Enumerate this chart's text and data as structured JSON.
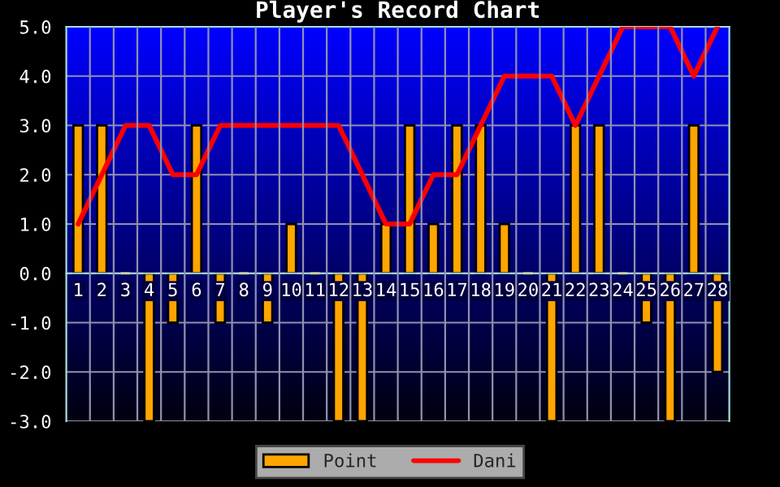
{
  "chart_data": {
    "type": "bar",
    "title": "Player's Record Chart",
    "categories": [
      "1",
      "2",
      "3",
      "4",
      "5",
      "6",
      "7",
      "8",
      "9",
      "10",
      "11",
      "12",
      "13",
      "14",
      "15",
      "16",
      "17",
      "18",
      "19",
      "20",
      "21",
      "22",
      "23",
      "24",
      "25",
      "26",
      "27",
      "28"
    ],
    "series": [
      {
        "name": "Point",
        "type": "bar",
        "color": "#ffa500",
        "values": [
          3,
          3,
          0,
          -3,
          -1,
          3,
          -1,
          0,
          -1,
          1,
          0,
          -3,
          -3,
          1,
          3,
          1,
          3,
          3,
          1,
          0,
          -3,
          3,
          3,
          0,
          -1,
          -3,
          3,
          -2
        ]
      },
      {
        "name": "Dani",
        "type": "line",
        "color": "#ff0000",
        "values": [
          1,
          2,
          3,
          3,
          2,
          2,
          3,
          3,
          3,
          3,
          3,
          3,
          2,
          1,
          1,
          2,
          2,
          3,
          4,
          4,
          4,
          3,
          4,
          5,
          5,
          5,
          4,
          5
        ]
      }
    ],
    "ylim": [
      -3,
      5
    ],
    "yticks": [
      {
        "value": -3,
        "label": "-3.0"
      },
      {
        "value": -2,
        "label": "-2.0"
      },
      {
        "value": -1,
        "label": "-1.0"
      },
      {
        "value": 0,
        "label": "0.0"
      },
      {
        "value": 1,
        "label": "1.0"
      },
      {
        "value": 2,
        "label": "2.0"
      },
      {
        "value": 3,
        "label": "3.0"
      },
      {
        "value": 4,
        "label": "4.0"
      },
      {
        "value": 5,
        "label": "5.0"
      }
    ],
    "grid": true,
    "legend": "bottom",
    "marker": "none",
    "line_style": "solid"
  }
}
